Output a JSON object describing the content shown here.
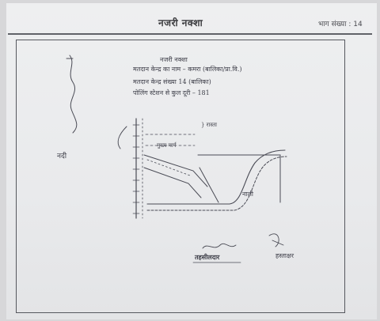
{
  "header": {
    "title": "नजरी नक्शा",
    "page_label": "भाग संख्या : 14"
  },
  "notes": {
    "line1": "नजरी नक्शा",
    "line2": "मतदान केन्द्र का नाम – कमरा (बालिका/प्रा.वि.)",
    "line3": "मतदान केन्द्र संख्या 14 (बालिका)",
    "line4": "पोलिंग स्टेशन से कुल दूरी – 181"
  },
  "sketch_labels": {
    "side": "नदी",
    "label_a": "} रास्ता",
    "label_b": "मुख्य मार्ग",
    "label_c": "नाली"
  },
  "signatures": {
    "name": "तहसीलदार",
    "right": "हस्ताक्षर"
  },
  "colors": {
    "ink": "#3d3e48",
    "frame": "#56585e",
    "page": "#eeeff0"
  }
}
